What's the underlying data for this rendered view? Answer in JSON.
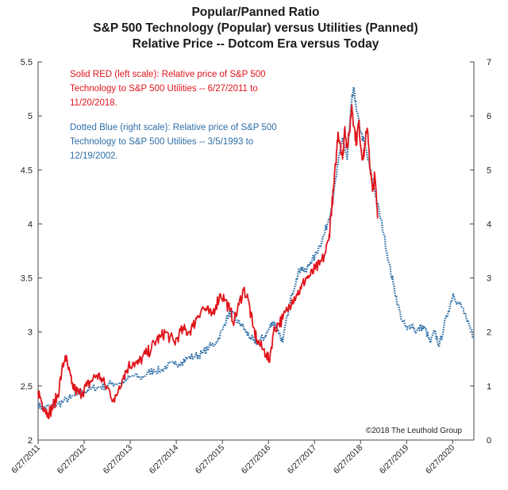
{
  "chart_data": {
    "type": "line",
    "title": [
      "Popular/Panned Ratio",
      "S&P 500 Technology (Popular) versus Utilities (Panned)",
      "Relative Price -- Dotcom Era versus Today"
    ],
    "x_tick_labels": [
      "6/27/2011",
      "6/27/2012",
      "6/27/2013",
      "6/27/2014",
      "6/27/2015",
      "6/27/2016",
      "6/27/2017",
      "6/27/2018",
      "6/27/2019",
      "6/27/2020"
    ],
    "x_range": [
      2011.49,
      2020.95
    ],
    "left_axis": {
      "range": [
        2,
        5.5
      ],
      "tick_values": [
        2,
        2.5,
        3,
        3.5,
        4,
        4.5,
        5,
        5.5
      ],
      "tick_labels": [
        "2",
        "2.5",
        "3",
        "3.5",
        "4",
        "4.5",
        "5",
        "5.5"
      ]
    },
    "right_axis": {
      "range": [
        0,
        7
      ],
      "tick_values": [
        0,
        1,
        2,
        3,
        4,
        5,
        6,
        7
      ],
      "tick_labels": [
        "0",
        "1",
        "2",
        "3",
        "4",
        "5",
        "6",
        "7"
      ]
    },
    "annotations": {
      "red": [
        "Solid RED (left scale): Relative price of S&P 500",
        "Technology to S&P 500 Utilities -- 6/27/2011 to",
        "11/20/2018."
      ],
      "blue": [
        "Dotted Blue (right scale): Relative price of S&P 500",
        "Technology to S&P 500 Utilities -- 3/5/1993 to",
        "12/19/2002."
      ]
    },
    "copyright": "©2018 The Leuthold Group",
    "series": [
      {
        "name": "S&P 500 Technology / Utilities relative price, 6/27/2011 to 11/20/2018",
        "axis": "left",
        "style": "solid",
        "color": "#e0141b",
        "x": [
          2011.49,
          2011.55,
          2011.62,
          2011.7,
          2011.78,
          2011.85,
          2011.92,
          2012.0,
          2012.08,
          2012.15,
          2012.22,
          2012.3,
          2012.38,
          2012.46,
          2012.55,
          2012.65,
          2012.75,
          2012.85,
          2012.95,
          2013.05,
          2013.15,
          2013.25,
          2013.35,
          2013.45,
          2013.55,
          2013.65,
          2013.75,
          2013.85,
          2013.95,
          2014.05,
          2014.15,
          2014.25,
          2014.35,
          2014.45,
          2014.55,
          2014.65,
          2014.75,
          2014.85,
          2014.95,
          2015.05,
          2015.15,
          2015.25,
          2015.35,
          2015.45,
          2015.55,
          2015.65,
          2015.75,
          2015.85,
          2015.95,
          2016.05,
          2016.15,
          2016.25,
          2016.35,
          2016.45,
          2016.5,
          2016.6,
          2016.7,
          2016.8,
          2016.9,
          2017.0,
          2017.1,
          2017.2,
          2017.3,
          2017.4,
          2017.5,
          2017.6,
          2017.7,
          2017.8,
          2017.85,
          2017.9,
          2017.95,
          2018.0,
          2018.05,
          2018.1,
          2018.15,
          2018.2,
          2018.25,
          2018.3,
          2018.35,
          2018.4,
          2018.45,
          2018.5,
          2018.55,
          2018.6,
          2018.65,
          2018.7,
          2018.75,
          2018.8,
          2018.86
        ],
        "values": [
          2.45,
          2.38,
          2.3,
          2.25,
          2.28,
          2.35,
          2.42,
          2.62,
          2.78,
          2.65,
          2.52,
          2.46,
          2.43,
          2.45,
          2.5,
          2.55,
          2.6,
          2.58,
          2.5,
          2.45,
          2.35,
          2.5,
          2.6,
          2.68,
          2.72,
          2.7,
          2.76,
          2.8,
          2.85,
          2.92,
          2.95,
          3.0,
          2.95,
          2.9,
          2.98,
          3.02,
          3.0,
          3.05,
          3.15,
          3.22,
          3.2,
          3.15,
          3.25,
          3.35,
          3.3,
          3.2,
          3.1,
          3.25,
          3.4,
          3.3,
          3.05,
          2.92,
          2.85,
          2.8,
          2.72,
          3.0,
          3.08,
          3.12,
          3.2,
          3.3,
          3.35,
          3.4,
          3.5,
          3.52,
          3.58,
          3.62,
          3.7,
          3.85,
          4.1,
          4.3,
          4.55,
          4.85,
          4.75,
          4.6,
          4.9,
          4.7,
          4.85,
          5.1,
          4.9,
          4.75,
          4.95,
          4.7,
          4.6,
          4.8,
          4.85,
          4.5,
          4.3,
          4.45,
          4.05
        ]
      },
      {
        "name": "S&P 500 Technology / Utilities relative price, 3/5/1993 to 12/19/2002",
        "axis": "right",
        "style": "dotted",
        "color": "#2e6ea6",
        "x": [
          2011.49,
          2011.6,
          2011.75,
          2011.9,
          2012.05,
          2012.2,
          2012.35,
          2012.5,
          2012.65,
          2012.8,
          2012.95,
          2013.1,
          2013.25,
          2013.4,
          2013.55,
          2013.7,
          2013.85,
          2014.0,
          2014.15,
          2014.3,
          2014.45,
          2014.6,
          2014.75,
          2014.9,
          2015.05,
          2015.2,
          2015.35,
          2015.5,
          2015.6,
          2015.7,
          2015.8,
          2015.9,
          2016.0,
          2016.1,
          2016.2,
          2016.3,
          2016.4,
          2016.5,
          2016.6,
          2016.7,
          2016.8,
          2016.9,
          2017.0,
          2017.1,
          2017.2,
          2017.3,
          2017.4,
          2017.5,
          2017.6,
          2017.7,
          2017.8,
          2017.9,
          2018.0,
          2018.1,
          2018.2,
          2018.3,
          2018.35,
          2018.4,
          2018.5,
          2018.6,
          2018.7,
          2018.8,
          2018.9,
          2019.0,
          2019.1,
          2019.2,
          2019.3,
          2019.4,
          2019.5,
          2019.6,
          2019.7,
          2019.8,
          2019.9,
          2020.0,
          2020.1,
          2020.2,
          2020.3,
          2020.4,
          2020.5,
          2020.6,
          2020.7,
          2020.8,
          2020.95
        ],
        "values": [
          0.65,
          0.6,
          0.62,
          0.65,
          0.72,
          0.78,
          0.85,
          0.9,
          0.95,
          0.98,
          1.0,
          1.05,
          1.05,
          1.1,
          1.2,
          1.15,
          1.22,
          1.3,
          1.28,
          1.38,
          1.4,
          1.45,
          1.52,
          1.55,
          1.6,
          1.72,
          1.8,
          2.05,
          2.3,
          2.35,
          2.2,
          2.15,
          2.0,
          1.9,
          1.8,
          1.85,
          1.9,
          2.05,
          2.2,
          2.05,
          1.8,
          2.3,
          2.7,
          3.0,
          3.2,
          3.1,
          3.3,
          3.4,
          3.6,
          3.8,
          4.1,
          4.5,
          5.1,
          5.6,
          5.2,
          6.3,
          6.5,
          6.1,
          5.7,
          5.4,
          5.0,
          4.6,
          4.2,
          3.8,
          3.3,
          2.9,
          2.5,
          2.2,
          2.05,
          2.15,
          2.0,
          2.1,
          2.05,
          1.8,
          2.0,
          1.75,
          2.1,
          2.4,
          2.7,
          2.55,
          2.45,
          2.2,
          1.9
        ]
      }
    ]
  }
}
